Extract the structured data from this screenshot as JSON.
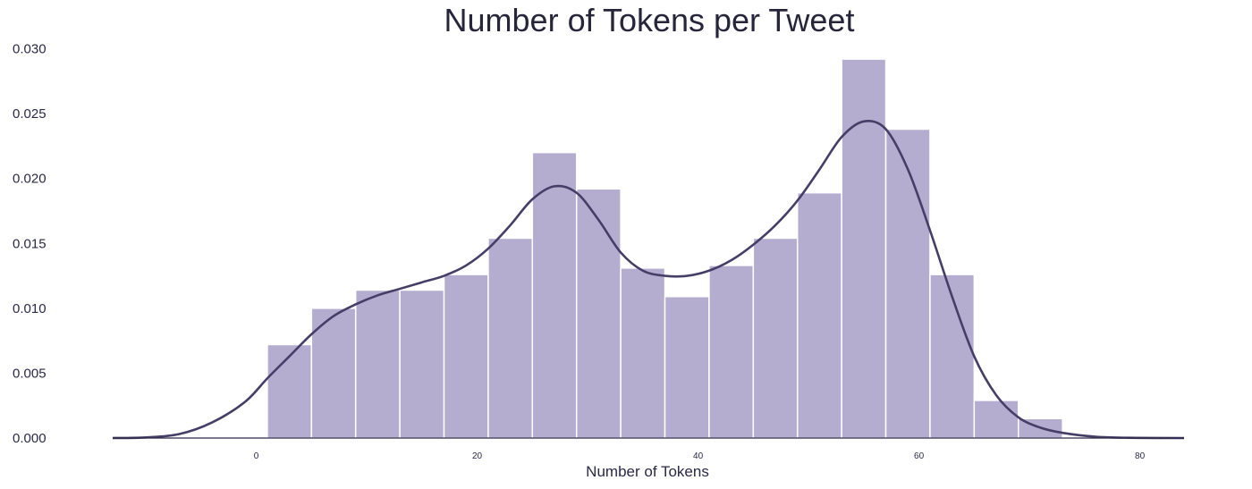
{
  "chart_data": {
    "type": "histogram",
    "title": "Number of Tokens per Tweet",
    "xlabel": "Number of Tokens",
    "ylabel": "",
    "xlim": [
      -13,
      84
    ],
    "ylim": [
      0,
      0.031
    ],
    "x_ticks": [
      0,
      20,
      40,
      60,
      80
    ],
    "y_ticks": [
      "0.000",
      "0.005",
      "0.010",
      "0.015",
      "0.020",
      "0.025",
      "0.030"
    ],
    "grid": false,
    "bar_color": "#b4add0",
    "line_color": "#463e66",
    "bins": [
      {
        "x0": 1,
        "x1": 5,
        "value": 0.0072
      },
      {
        "x0": 5,
        "x1": 9,
        "value": 0.01
      },
      {
        "x0": 9,
        "x1": 13,
        "value": 0.0114
      },
      {
        "x0": 13,
        "x1": 17,
        "value": 0.0114
      },
      {
        "x0": 17,
        "x1": 21,
        "value": 0.0126
      },
      {
        "x0": 21,
        "x1": 25,
        "value": 0.0154
      },
      {
        "x0": 25,
        "x1": 29,
        "value": 0.022
      },
      {
        "x0": 29,
        "x1": 33,
        "value": 0.0192
      },
      {
        "x0": 33,
        "x1": 37,
        "value": 0.0131
      },
      {
        "x0": 37,
        "x1": 41,
        "value": 0.0109
      },
      {
        "x0": 41,
        "x1": 45,
        "value": 0.0133
      },
      {
        "x0": 45,
        "x1": 49,
        "value": 0.0154
      },
      {
        "x0": 49,
        "x1": 53,
        "value": 0.0189
      },
      {
        "x0": 53,
        "x1": 57,
        "value": 0.0292
      },
      {
        "x0": 57,
        "x1": 61,
        "value": 0.0238
      },
      {
        "x0": 61,
        "x1": 65,
        "value": 0.0126
      },
      {
        "x0": 65,
        "x1": 69,
        "value": 0.0029
      },
      {
        "x0": 69,
        "x1": 73,
        "value": 0.0015
      }
    ],
    "kde": {
      "x": [
        -13,
        -10,
        -7,
        -4,
        -1,
        1,
        3,
        5,
        7,
        9,
        11,
        13,
        15,
        17,
        19,
        21,
        23,
        25,
        27,
        29,
        31,
        33,
        35,
        37,
        39,
        41,
        43,
        45,
        47,
        49,
        51,
        53,
        55,
        57,
        59,
        61,
        63,
        65,
        67,
        69,
        71,
        73,
        76,
        79,
        84
      ],
      "y": [
        0.0,
        5e-05,
        0.0003,
        0.0012,
        0.0028,
        0.0046,
        0.0063,
        0.008,
        0.0094,
        0.0103,
        0.011,
        0.0115,
        0.012,
        0.0125,
        0.0133,
        0.0146,
        0.0164,
        0.0184,
        0.0194,
        0.0189,
        0.0168,
        0.0143,
        0.0129,
        0.0125,
        0.0125,
        0.0129,
        0.0137,
        0.0149,
        0.0164,
        0.0183,
        0.0207,
        0.0232,
        0.0244,
        0.0238,
        0.0207,
        0.016,
        0.0109,
        0.0063,
        0.0033,
        0.0016,
        0.0008,
        0.0004,
        0.0001,
        2e-05,
        0.0
      ]
    }
  }
}
